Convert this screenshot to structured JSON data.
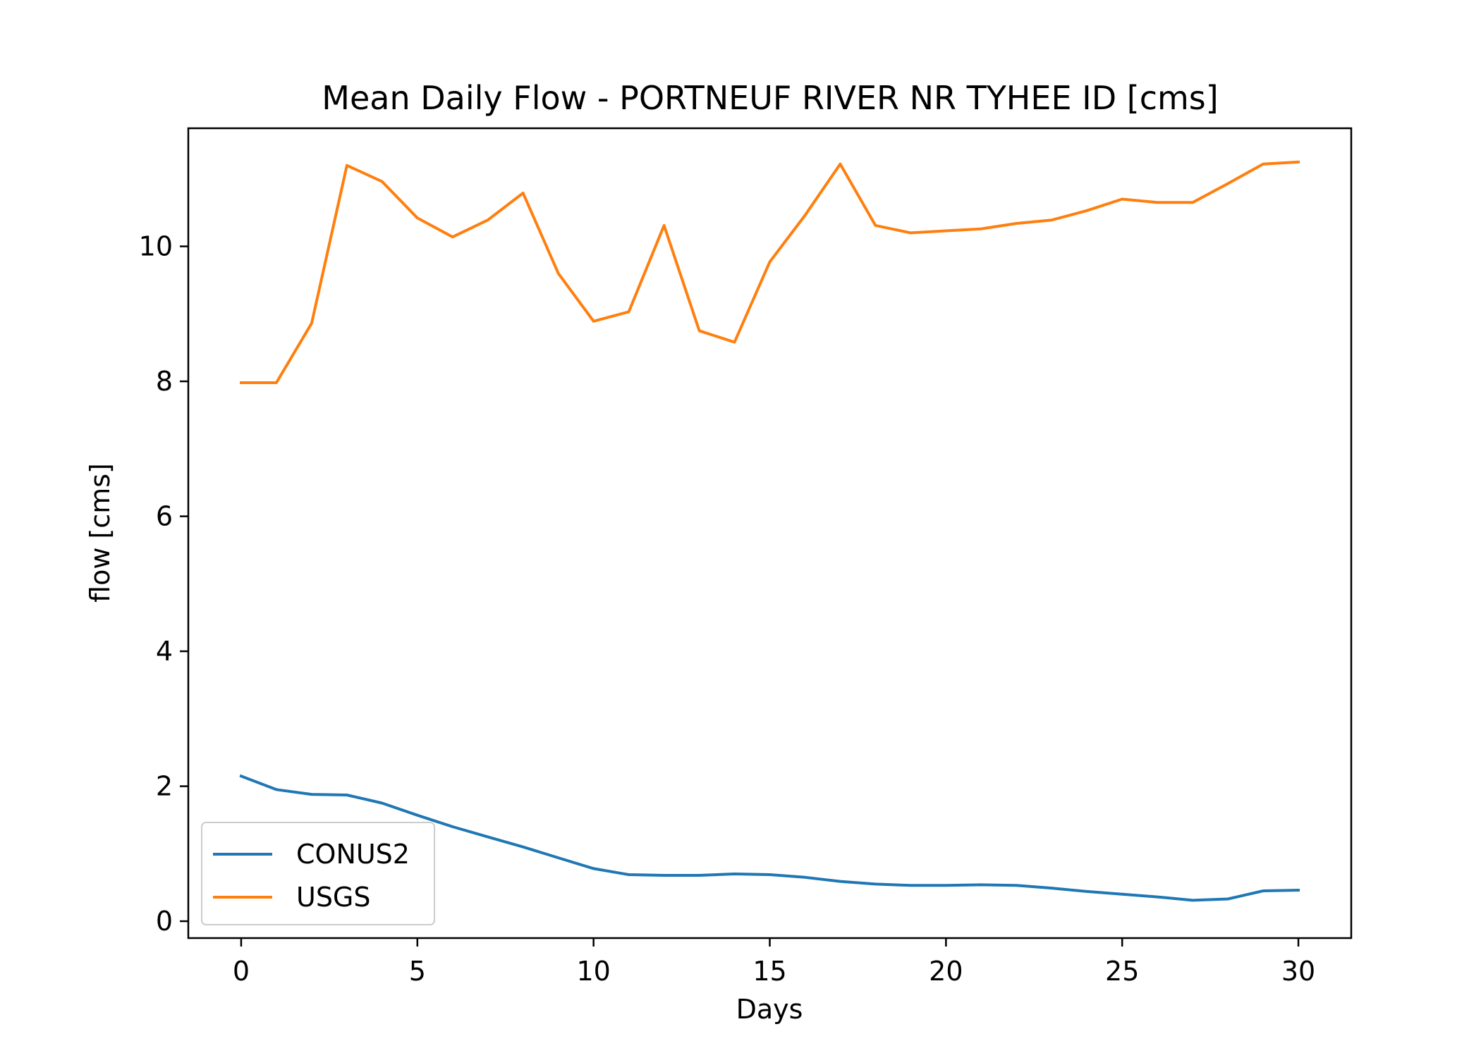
{
  "chart_data": {
    "type": "line",
    "title": "Mean Daily Flow - PORTNEUF RIVER NR TYHEE ID [cms]",
    "xlabel": "Days",
    "ylabel": "flow [cms]",
    "xlim": [
      -1.5,
      31.5
    ],
    "ylim": [
      -0.25,
      11.75
    ],
    "xticks": [
      0,
      5,
      10,
      15,
      20,
      25,
      30
    ],
    "yticks": [
      0,
      2,
      4,
      6,
      8,
      10
    ],
    "grid": false,
    "legend_position": "lower-left",
    "x": [
      0,
      1,
      2,
      3,
      4,
      5,
      6,
      7,
      8,
      9,
      10,
      11,
      12,
      13,
      14,
      15,
      16,
      17,
      18,
      19,
      20,
      21,
      22,
      23,
      24,
      25,
      26,
      27,
      28,
      29,
      30
    ],
    "series": [
      {
        "name": "CONUS2",
        "color": "#1f77b4",
        "values": [
          2.15,
          1.95,
          1.88,
          1.87,
          1.75,
          1.57,
          1.4,
          1.25,
          1.1,
          0.94,
          0.78,
          0.69,
          0.68,
          0.68,
          0.7,
          0.69,
          0.65,
          0.59,
          0.55,
          0.53,
          0.53,
          0.54,
          0.53,
          0.49,
          0.44,
          0.4,
          0.36,
          0.31,
          0.33,
          0.45,
          0.46
        ]
      },
      {
        "name": "USGS",
        "color": "#ff7f0e",
        "values": [
          7.98,
          7.98,
          8.86,
          11.2,
          10.96,
          10.42,
          10.14,
          10.39,
          10.79,
          9.6,
          8.89,
          9.03,
          10.31,
          8.75,
          8.58,
          9.77,
          10.46,
          11.22,
          10.31,
          10.2,
          10.23,
          10.26,
          10.34,
          10.39,
          10.53,
          10.7,
          10.65,
          10.65,
          10.93,
          11.22,
          11.25
        ]
      }
    ]
  }
}
